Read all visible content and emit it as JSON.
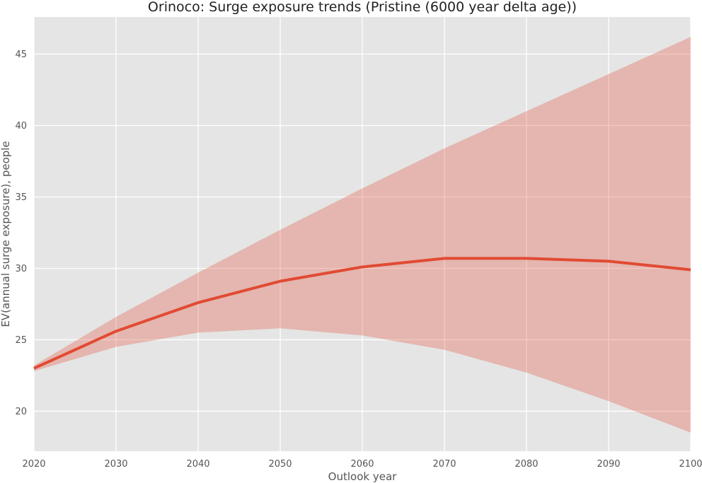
{
  "chart_data": {
    "type": "line",
    "title": "Orinoco: Surge exposure trends (Pristine (6000 year delta age))",
    "xlabel": "Outlook year",
    "ylabel": "EV(annual surge exposure), people",
    "xlim": [
      2020,
      2100
    ],
    "ylim": [
      17.2,
      47.6
    ],
    "xticks": [
      2020,
      2030,
      2040,
      2050,
      2060,
      2070,
      2080,
      2090,
      2100
    ],
    "yticks": [
      20,
      25,
      30,
      35,
      40,
      45
    ],
    "grid": true,
    "x": [
      2020,
      2030,
      2040,
      2050,
      2060,
      2070,
      2080,
      2090,
      2100
    ],
    "series": [
      {
        "values": [
          23.0,
          25.6,
          27.6,
          29.1,
          30.1,
          30.7,
          30.7,
          30.5,
          29.9
        ],
        "band_upper": [
          23.2,
          26.6,
          29.7,
          32.7,
          35.6,
          38.4,
          41.0,
          43.6,
          46.2
        ],
        "band_lower": [
          22.8,
          24.5,
          25.5,
          25.8,
          25.3,
          24.3,
          22.7,
          20.7,
          18.5
        ]
      }
    ],
    "colors": {
      "line": "#e24a33",
      "band": "#e24a33",
      "background": "#e5e5e5",
      "grid": "#ffffff"
    }
  }
}
